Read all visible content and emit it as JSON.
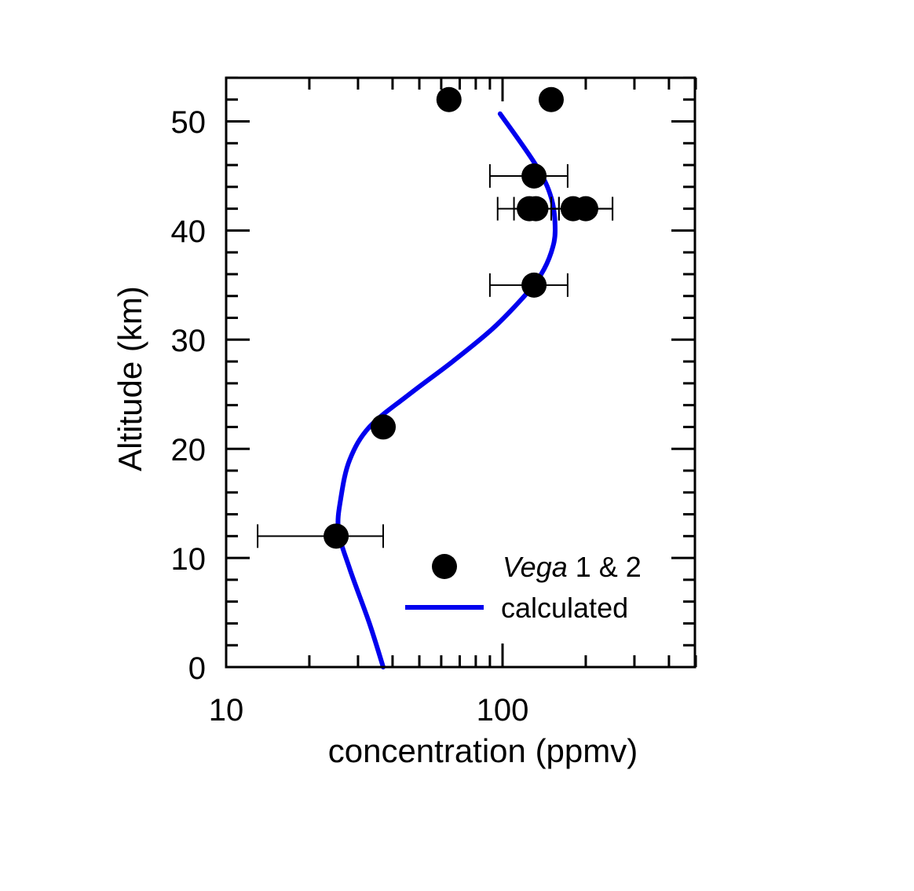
{
  "chart_data": {
    "type": "scatter",
    "xlabel": "concentration (ppmv)",
    "ylabel": "Altitude (km)",
    "x_scale": "log",
    "xlim": [
      10,
      550
    ],
    "ylim": [
      0,
      54
    ],
    "x_tick_labels": [
      "10",
      "100"
    ],
    "y_tick_labels": [
      "0",
      "10",
      "20",
      "30",
      "40",
      "50"
    ],
    "grid": false,
    "legend_position": "bottom-right",
    "series": [
      {
        "name": "Vega 1 & 2",
        "name_italic_part": "Vega",
        "name_rest": " 1 & 2",
        "kind": "points",
        "color": "#000000",
        "points": [
          {
            "x": 64,
            "y": 52
          },
          {
            "x": 150,
            "y": 52
          },
          {
            "x": 130,
            "y": 45,
            "xerr": [
              90,
              172
            ]
          },
          {
            "x": 125,
            "y": 42,
            "xerr": [
              96,
              160
            ]
          },
          {
            "x": 132,
            "y": 42,
            "xerr": [
              110,
              160
            ]
          },
          {
            "x": 180,
            "y": 42,
            "xerr": [
              150,
              250
            ]
          },
          {
            "x": 200,
            "y": 42,
            "xerr": [
              150,
              250
            ]
          },
          {
            "x": 130,
            "y": 35,
            "xerr": [
              90,
              172
            ]
          },
          {
            "x": 37,
            "y": 22
          },
          {
            "x": 25,
            "y": 12,
            "xerr": [
              13,
              37
            ]
          }
        ]
      },
      {
        "name": "calculated",
        "kind": "line",
        "color": "#0000ee",
        "points": [
          {
            "x": 37,
            "y": 0
          },
          {
            "x": 33,
            "y": 4
          },
          {
            "x": 28,
            "y": 9
          },
          {
            "x": 25.5,
            "y": 12.5
          },
          {
            "x": 26,
            "y": 15.5
          },
          {
            "x": 28,
            "y": 19
          },
          {
            "x": 33,
            "y": 22
          },
          {
            "x": 46,
            "y": 25
          },
          {
            "x": 66,
            "y": 28
          },
          {
            "x": 92,
            "y": 31
          },
          {
            "x": 120,
            "y": 34
          },
          {
            "x": 138,
            "y": 36
          },
          {
            "x": 150,
            "y": 38
          },
          {
            "x": 155,
            "y": 40
          },
          {
            "x": 150,
            "y": 43
          },
          {
            "x": 132,
            "y": 46
          },
          {
            "x": 98,
            "y": 50.7
          }
        ]
      }
    ]
  }
}
